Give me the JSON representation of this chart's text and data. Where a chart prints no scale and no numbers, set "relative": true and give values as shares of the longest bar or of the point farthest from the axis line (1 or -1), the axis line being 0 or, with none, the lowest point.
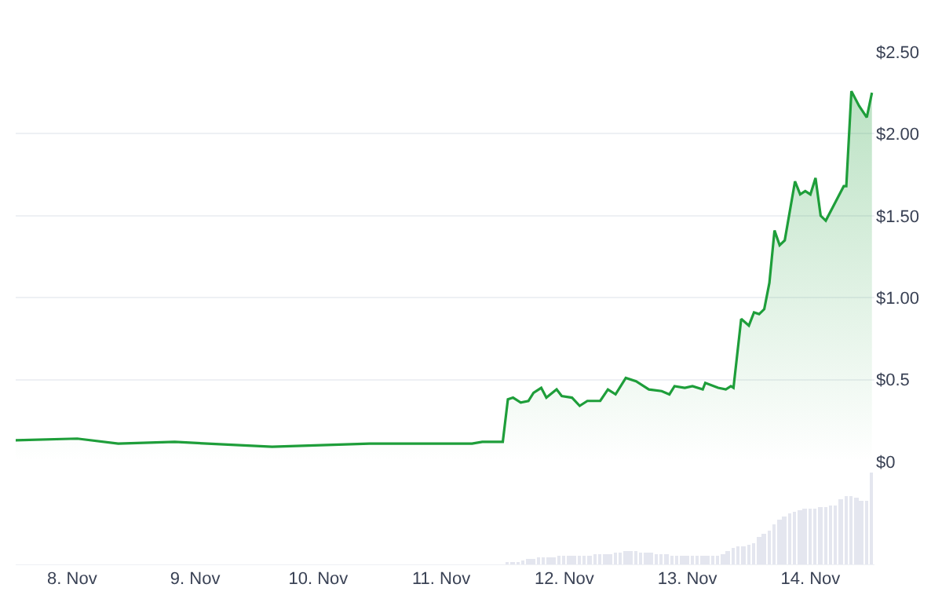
{
  "chart_data": [
    {
      "type": "area",
      "tick_labels": "y",
      "grid": "y",
      "xlim": [
        "--11-07T13:00",
        "--11-14T12:30"
      ],
      "ylim": [
        0,
        2.5
      ],
      "yticks": [
        {
          "value": 0,
          "label": "$0"
        },
        {
          "value": 0.5,
          "label": "$0.5"
        },
        {
          "value": 1,
          "label": "$1.00"
        },
        {
          "value": 1.5,
          "label": "$1.50"
        },
        {
          "value": 2,
          "label": "$2.00"
        },
        {
          "value": 2.5,
          "label": "$2.50"
        }
      ],
      "x": [
        "--11-07T13:00",
        "--11-08T01:00",
        "--11-08T09:00",
        "--11-08T20:00",
        "--11-09T15:00",
        "--11-10T10:00",
        "--11-11T03:00",
        "--11-11T06:00",
        "--11-11T08:00",
        "--11-11T12:00",
        "--11-11T13:00",
        "--11-11T14:00",
        "--11-11T15:30",
        "--11-11T17:00",
        "--11-11T18:00",
        "--11-11T19:30",
        "--11-11T20:30",
        "--11-11T22:30",
        "--11-11T23:30",
        "--11-12T01:30",
        "--11-12T03:00",
        "--11-12T04:30",
        "--11-12T07:00",
        "--11-12T08:30",
        "--11-12T10:00",
        "--11-12T12:00",
        "--11-12T14:00",
        "--11-12T16:30",
        "--11-12T19:00",
        "--11-12T20:30",
        "--11-12T21:30",
        "--11-12T23:30",
        "--11-13T01:00",
        "--11-13T03:00",
        "--11-13T03:30",
        "--11-13T06:00",
        "--11-13T07:30",
        "--11-13T08:30",
        "--11-13T09:00",
        "--11-13T10:30",
        "--11-13T12:00",
        "--11-13T13:00",
        "--11-13T14:00",
        "--11-13T15:00",
        "--11-13T16:00",
        "--11-13T17:00",
        "--11-13T18:00",
        "--11-13T19:00",
        "--11-13T21:00",
        "--11-13T22:00",
        "--11-13T23:00",
        "--11-14T00:00",
        "--11-14T01:00",
        "--11-14T02:00",
        "--11-14T03:00",
        "--11-14T05:00",
        "--11-14T06:30",
        "--11-14T07:00",
        "--11-14T08:00",
        "--11-14T09:30",
        "--11-14T11:00",
        "--11-14T12:00"
      ],
      "series": [
        {
          "color": "#1e9e3a",
          "values": [
            0.13,
            0.14,
            0.11,
            0.12,
            0.09,
            0.11,
            0.11,
            0.11,
            0.12,
            0.12,
            0.38,
            0.39,
            0.36,
            0.37,
            0.42,
            0.45,
            0.39,
            0.44,
            0.4,
            0.39,
            0.34,
            0.37,
            0.37,
            0.44,
            0.41,
            0.51,
            0.49,
            0.44,
            0.43,
            0.41,
            0.46,
            0.45,
            0.46,
            0.44,
            0.48,
            0.45,
            0.44,
            0.46,
            0.45,
            0.87,
            0.83,
            0.91,
            0.9,
            0.93,
            1.09,
            1.41,
            1.32,
            1.35,
            1.71,
            1.63,
            1.65,
            1.63,
            1.73,
            1.5,
            1.47,
            1.59,
            1.68,
            1.68,
            2.26,
            2.17,
            2.1,
            2.25
          ]
        }
      ]
    },
    {
      "type": "bar",
      "relative": true,
      "tick_labels": "x",
      "xlim": [
        "--11-07T13:00",
        "--11-14T12:30"
      ],
      "xticks": [
        {
          "value": "--11-08",
          "label": "8. Nov"
        },
        {
          "value": "--11-09",
          "label": "9. Nov"
        },
        {
          "value": "--11-10",
          "label": "10. Nov"
        },
        {
          "value": "--11-11",
          "label": "11. Nov"
        },
        {
          "value": "--11-12",
          "label": "12. Nov"
        },
        {
          "value": "--11-13",
          "label": "13. Nov"
        },
        {
          "value": "--11-14",
          "label": "14. Nov"
        }
      ],
      "x": [
        "--11-11T13:00",
        "--11-11T14:00",
        "--11-11T15:00",
        "--11-11T16:00",
        "--11-11T17:00",
        "--11-11T18:00",
        "--11-11T19:00",
        "--11-11T20:00",
        "--11-11T21:00",
        "--11-11T22:00",
        "--11-11T23:00",
        "--11-12T00:00",
        "--11-12T01:00",
        "--11-12T02:00",
        "--11-12T03:00",
        "--11-12T04:00",
        "--11-12T05:00",
        "--11-12T06:00",
        "--11-12T07:00",
        "--11-12T08:00",
        "--11-12T09:00",
        "--11-12T10:00",
        "--11-12T11:00",
        "--11-12T12:00",
        "--11-12T13:00",
        "--11-12T14:00",
        "--11-12T15:00",
        "--11-12T16:00",
        "--11-12T17:00",
        "--11-12T18:00",
        "--11-12T19:00",
        "--11-12T20:00",
        "--11-12T21:00",
        "--11-12T22:00",
        "--11-12T23:00",
        "--11-13T00:00",
        "--11-13T01:00",
        "--11-13T02:00",
        "--11-13T03:00",
        "--11-13T04:00",
        "--11-13T05:00",
        "--11-13T06:00",
        "--11-13T07:00",
        "--11-13T08:00",
        "--11-13T09:00",
        "--11-13T10:00",
        "--11-13T11:00",
        "--11-13T12:00",
        "--11-13T13:00",
        "--11-13T14:00",
        "--11-13T15:00",
        "--11-13T16:00",
        "--11-13T17:00",
        "--11-13T18:00",
        "--11-13T19:00",
        "--11-13T20:00",
        "--11-13T21:00",
        "--11-13T22:00",
        "--11-13T23:00",
        "--11-14T00:00",
        "--11-14T01:00",
        "--11-14T02:00",
        "--11-14T03:00",
        "--11-14T04:00",
        "--11-14T05:00",
        "--11-14T06:00",
        "--11-14T07:00",
        "--11-14T08:00",
        "--11-14T09:00",
        "--11-14T10:00",
        "--11-14T11:00",
        "--11-14T12:00"
      ],
      "series": [
        {
          "color": "#e4e6ef",
          "values": [
            0.02,
            0.03,
            0.04,
            0.05,
            0.06,
            0.07,
            0.08,
            0.08,
            0.09,
            0.09,
            0.1,
            0.1,
            0.1,
            0.11,
            0.11,
            0.11,
            0.11,
            0.12,
            0.12,
            0.12,
            0.12,
            0.13,
            0.14,
            0.15,
            0.16,
            0.15,
            0.14,
            0.13,
            0.13,
            0.12,
            0.12,
            0.12,
            0.11,
            0.11,
            0.11,
            0.1,
            0.1,
            0.1,
            0.1,
            0.1,
            0.1,
            0.1,
            0.12,
            0.15,
            0.18,
            0.2,
            0.21,
            0.22,
            0.24,
            0.3,
            0.34,
            0.38,
            0.45,
            0.5,
            0.53,
            0.56,
            0.58,
            0.6,
            0.61,
            0.62,
            0.62,
            0.63,
            0.63,
            0.64,
            0.64,
            0.72,
            0.74,
            0.74,
            0.73,
            0.7,
            0.7,
            1.0
          ]
        }
      ]
    }
  ]
}
